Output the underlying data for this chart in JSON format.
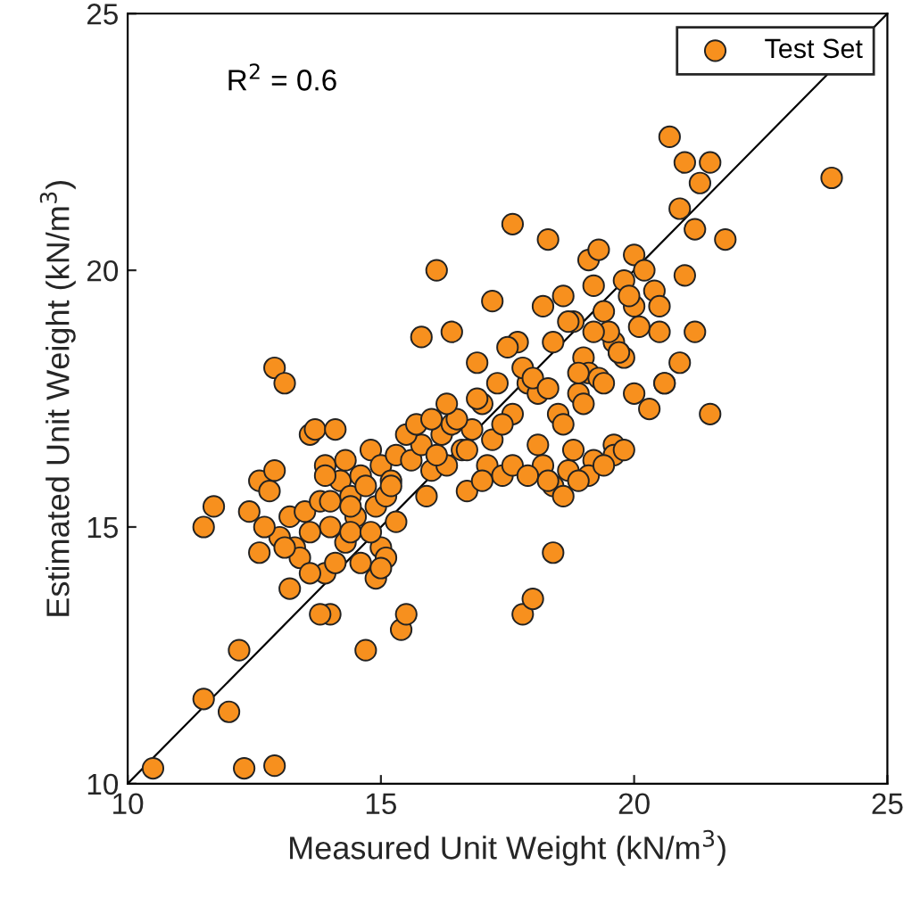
{
  "chart_data": {
    "type": "scatter",
    "xlabel": "Measured Unit Weight (kN/m$^{3}$)",
    "ylabel": "Estimated Unit Weight (kN/m$^{3}$)",
    "xlim": [
      10,
      25
    ],
    "ylim": [
      10,
      25
    ],
    "xticks": [
      10,
      15,
      20,
      25
    ],
    "yticks": [
      10,
      15,
      20,
      25
    ],
    "grid": false,
    "legend": "top right",
    "marker": "circle",
    "annotations": [
      "R$^{2}$ = 0.6"
    ],
    "series": [
      {
        "name": "Test Set",
        "color": "#f7901e",
        "x": [
          10.5,
          12.3,
          12.9,
          11.5,
          12.0,
          12.2,
          11.5,
          11.7,
          12.6,
          12.9,
          13.1,
          14.7,
          15.4,
          15.5,
          14.0,
          13.8,
          13.2,
          17.6,
          16.1,
          17.8,
          18.0,
          18.4,
          21.5,
          21.8,
          23.9,
          20.7,
          21.0,
          21.3,
          21.5,
          20.9,
          21.2,
          18.3,
          19.1,
          20.0,
          20.5,
          20.9,
          20.6,
          21.2,
          12.4,
          12.6,
          12.8,
          12.9,
          13.0,
          13.2,
          13.3,
          13.5,
          13.6,
          13.7,
          13.8,
          13.9,
          14.0,
          14.1,
          14.2,
          14.3,
          14.4,
          14.5,
          14.6,
          14.7,
          14.8,
          14.9,
          15.0,
          15.1,
          15.2,
          15.3,
          13.4,
          13.9,
          14.3,
          14.6,
          15.0,
          15.3,
          12.7,
          13.1,
          13.6,
          14.1,
          14.4,
          14.9,
          15.1,
          13.9,
          14.0,
          14.4,
          15.6,
          15.8,
          16.0,
          16.2,
          16.4,
          16.6,
          16.8,
          17.0,
          17.2,
          15.5,
          15.9,
          16.3,
          16.7,
          17.1,
          17.4,
          17.6,
          17.3,
          16.9,
          16.5,
          16.1,
          15.7,
          16.0,
          16.9,
          17.7,
          17.9,
          18.1,
          17.2,
          16.4,
          15.8,
          17.5,
          17.8,
          18.0,
          18.2,
          18.4,
          18.6,
          18.8,
          19.0,
          19.2,
          19.4,
          19.6,
          19.8,
          20.0,
          18.3,
          18.7,
          19.1,
          19.5,
          19.9,
          20.2,
          18.5,
          18.9,
          19.3,
          19.7,
          20.1,
          20.4,
          18.1,
          18.6,
          19.0,
          19.4,
          19.8,
          18.2,
          18.8,
          19.2,
          19.6,
          20.3,
          20.6,
          18.7,
          19.1,
          19.6,
          18.4,
          18.9,
          19.4,
          19.8,
          20.0,
          17.6,
          17.9,
          18.6,
          18.3,
          19.2,
          19.7,
          20.5,
          21.0,
          19.3,
          18.9,
          17.4,
          17.0,
          16.7,
          14.8,
          15.0,
          13.6,
          16.3,
          15.2
        ],
        "values": [
          10.3,
          10.3,
          10.35,
          11.65,
          11.4,
          12.6,
          15.0,
          15.4,
          14.5,
          18.1,
          17.8,
          12.6,
          13.0,
          13.3,
          13.3,
          13.3,
          13.8,
          20.9,
          20.0,
          13.3,
          13.6,
          14.5,
          17.2,
          20.6,
          21.8,
          22.6,
          22.1,
          21.7,
          22.1,
          21.2,
          20.8,
          20.6,
          20.2,
          20.3,
          18.8,
          18.2,
          17.8,
          18.8,
          15.3,
          15.9,
          15.7,
          16.1,
          14.8,
          15.2,
          14.6,
          15.3,
          16.8,
          16.9,
          15.5,
          16.2,
          15.0,
          16.9,
          15.9,
          16.3,
          15.6,
          15.2,
          16.0,
          15.8,
          16.5,
          15.4,
          16.2,
          15.6,
          15.9,
          16.4,
          14.4,
          14.1,
          14.7,
          14.3,
          14.6,
          15.1,
          15.0,
          14.6,
          14.9,
          14.3,
          14.9,
          14.0,
          14.4,
          16.0,
          15.5,
          15.4,
          16.3,
          16.6,
          16.1,
          16.8,
          17.0,
          16.5,
          16.9,
          17.4,
          16.7,
          16.8,
          15.6,
          16.2,
          15.7,
          16.2,
          16.0,
          17.2,
          17.8,
          17.5,
          17.1,
          16.4,
          17.0,
          17.1,
          18.2,
          18.6,
          17.8,
          17.6,
          19.4,
          18.8,
          18.7,
          18.5,
          18.1,
          17.9,
          19.3,
          18.6,
          19.5,
          19.0,
          18.3,
          19.7,
          19.2,
          18.6,
          19.8,
          19.3,
          17.7,
          19.0,
          18.0,
          18.8,
          19.5,
          20.0,
          17.2,
          17.6,
          17.9,
          18.4,
          18.9,
          19.6,
          16.6,
          17.0,
          17.4,
          17.8,
          18.3,
          16.2,
          16.5,
          16.3,
          16.6,
          17.3,
          17.8,
          16.1,
          16.0,
          16.4,
          15.8,
          15.9,
          16.2,
          16.5,
          17.6,
          16.2,
          16.0,
          15.6,
          15.9,
          18.8,
          18.4,
          19.3,
          19.9,
          20.4,
          18.0,
          17.0,
          15.9,
          16.5,
          14.9,
          14.2,
          14.1,
          17.4,
          15.8
        ]
      },
      {
        "type": "line",
        "marker": "none",
        "color": "#000000",
        "x": [
          10,
          25
        ],
        "values": [
          10,
          25
        ]
      }
    ]
  }
}
